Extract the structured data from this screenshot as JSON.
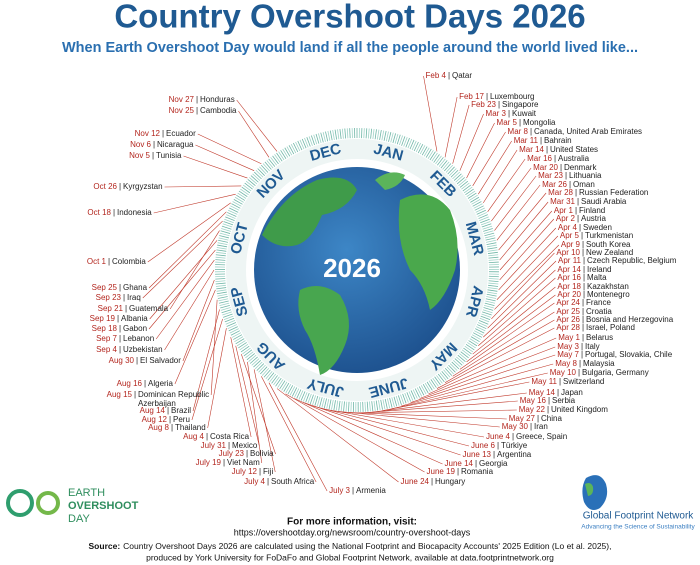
{
  "header": {
    "title": "Country Overshoot Days 2026",
    "subtitle": "When Earth Overshoot Day would land if all the people around the world lived like..."
  },
  "months": [
    "JAN",
    "FEB",
    "MAR",
    "APR",
    "MAY",
    "JUNE",
    "JULY",
    "AUG",
    "SEP",
    "OCT",
    "NOV",
    "DEC"
  ],
  "globe_label": "2026",
  "separator": "|",
  "countries": [
    {
      "date": "Feb 4",
      "country": "Qatar"
    },
    {
      "date": "Feb 17",
      "country": "Luxembourg"
    },
    {
      "date": "Feb 23",
      "country": "Singapore"
    },
    {
      "date": "Mar 3",
      "country": "Kuwait"
    },
    {
      "date": "Mar 5",
      "country": "Mongolia"
    },
    {
      "date": "Mar 8",
      "country": "Canada, United Arab Emirates"
    },
    {
      "date": "Mar 11",
      "country": "Bahrain"
    },
    {
      "date": "Mar 14",
      "country": "United States"
    },
    {
      "date": "Mar 16",
      "country": "Australia"
    },
    {
      "date": "Mar 20",
      "country": "Denmark"
    },
    {
      "date": "Mar 23",
      "country": "Lithuania"
    },
    {
      "date": "Mar 26",
      "country": "Oman"
    },
    {
      "date": "Mar 28",
      "country": "Russian Federation"
    },
    {
      "date": "Mar 31",
      "country": "Saudi Arabia"
    },
    {
      "date": "Apr 1",
      "country": "Finland"
    },
    {
      "date": "Apr 2",
      "country": "Austria"
    },
    {
      "date": "Apr 4",
      "country": "Sweden"
    },
    {
      "date": "Apr 5",
      "country": "Turkmenistan"
    },
    {
      "date": "Apr 9",
      "country": "South Korea"
    },
    {
      "date": "Apr 10",
      "country": "New Zealand"
    },
    {
      "date": "Apr 11",
      "country": "Czech Republic, Belgium"
    },
    {
      "date": "Apr 14",
      "country": "Ireland"
    },
    {
      "date": "Apr 16",
      "country": "Malta"
    },
    {
      "date": "Apr 18",
      "country": "Kazakhstan"
    },
    {
      "date": "Apr 20",
      "country": "Montenegro"
    },
    {
      "date": "Apr 24",
      "country": "France"
    },
    {
      "date": "Apr 25",
      "country": "Croatia"
    },
    {
      "date": "Apr 26",
      "country": "Bosnia and Herzegovina"
    },
    {
      "date": "Apr 28",
      "country": "Israel, Poland"
    },
    {
      "date": "May 1",
      "country": "Belarus"
    },
    {
      "date": "May 3",
      "country": "Italy"
    },
    {
      "date": "May 7",
      "country": "Portugal, Slovakia, Chile"
    },
    {
      "date": "May 8",
      "country": "Malaysia"
    },
    {
      "date": "May 10",
      "country": "Bulgaria, Germany"
    },
    {
      "date": "May 11",
      "country": "Switzerland"
    },
    {
      "date": "May 14",
      "country": "Japan"
    },
    {
      "date": "May 16",
      "country": "Serbia"
    },
    {
      "date": "May 22",
      "country": "United Kingdom"
    },
    {
      "date": "May 27",
      "country": "China"
    },
    {
      "date": "May 30",
      "country": "Iran"
    },
    {
      "date": "June 4",
      "country": "Greece, Spain"
    },
    {
      "date": "June 6",
      "country": "Türkiye"
    },
    {
      "date": "June 13",
      "country": "Argentina"
    },
    {
      "date": "June 14",
      "country": "Georgia"
    },
    {
      "date": "June 19",
      "country": "Romania"
    },
    {
      "date": "June 24",
      "country": "Hungary"
    },
    {
      "date": "July 3",
      "country": "Armenia"
    },
    {
      "date": "July 4",
      "country": "South Africa"
    },
    {
      "date": "July 12",
      "country": "Fiji"
    },
    {
      "date": "July 19",
      "country": "Viet Nam"
    },
    {
      "date": "July 23",
      "country": "Bolivia"
    },
    {
      "date": "July 31",
      "country": "Mexico"
    },
    {
      "date": "Aug 4",
      "country": "Costa Rica"
    },
    {
      "date": "Aug 8",
      "country": "Thailand"
    },
    {
      "date": "Aug 12",
      "country": "Peru"
    },
    {
      "date": "Aug 14",
      "country": "Brazil"
    },
    {
      "date": "Aug 15",
      "country": [
        "Dominican Republic",
        "Azerbaijan"
      ]
    },
    {
      "date": "Aug 16",
      "country": "Algeria"
    },
    {
      "date": "Aug 30",
      "country": "El Salvador"
    },
    {
      "date": "Sep 4",
      "country": "Uzbekistan"
    },
    {
      "date": "Sep 7",
      "country": "Lebanon"
    },
    {
      "date": "Sep 18",
      "country": "Gabon"
    },
    {
      "date": "Sep 19",
      "country": "Albania"
    },
    {
      "date": "Sep 21",
      "country": "Guatemala"
    },
    {
      "date": "Sep 23",
      "country": "Iraq"
    },
    {
      "date": "Sep 25",
      "country": "Ghana"
    },
    {
      "date": "Oct 1",
      "country": "Colombia"
    },
    {
      "date": "Oct 18",
      "country": "Indonesia"
    },
    {
      "date": "Oct 26",
      "country": "Kyrgyzstan"
    },
    {
      "date": "Nov 5",
      "country": "Tunisia"
    },
    {
      "date": "Nov 6",
      "country": "Nicaragua"
    },
    {
      "date": "Nov 12",
      "country": "Ecuador"
    },
    {
      "date": "Nov 25",
      "country": "Cambodia"
    },
    {
      "date": "Nov 27",
      "country": "Honduras"
    }
  ],
  "footer": {
    "more_info": "For more information, visit:",
    "url": "https://overshootday.org/newsroom/country-overshoot-days",
    "source_label": "Source:",
    "source_lines": [
      "Country Overshoot Days 2026 are calculated using the National Footprint and Biocapacity Accounts' 2025 Edition (Lo et al. 2025),",
      "produced by York University for FoDaFo and Global Footprint Network, available at data.footprintnetwork.org"
    ]
  },
  "logos": {
    "eod": [
      "EARTH",
      "OVERSHOOT",
      "DAY"
    ],
    "gfn_name": "Global Footprint Network",
    "gfn_tagline": "Advancing the Science of Sustainability"
  }
}
